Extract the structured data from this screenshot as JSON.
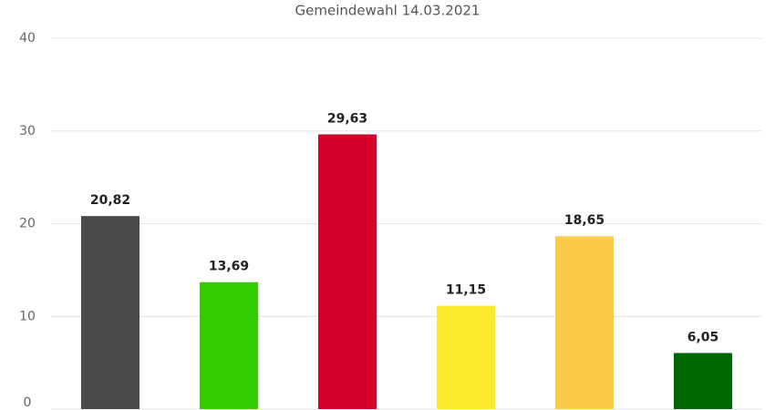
{
  "chart_data": {
    "type": "bar",
    "title": "Gemeindewahl 14.03.2021",
    "categories": [
      null,
      null,
      null,
      null,
      null,
      null
    ],
    "values": [
      20.82,
      13.69,
      29.63,
      11.15,
      18.65,
      6.05
    ],
    "value_labels": [
      "20,82",
      "13,69",
      "29,63",
      "11,15",
      "18,65",
      "6,05"
    ],
    "colors": [
      "#4a4a4a",
      "#33cc00",
      "#d4002a",
      "#fbe92f",
      "#fdcb4a",
      "#006600"
    ],
    "ylim": [
      0,
      40
    ],
    "yticks": [
      0,
      10,
      20,
      30,
      40
    ],
    "grid": true
  }
}
